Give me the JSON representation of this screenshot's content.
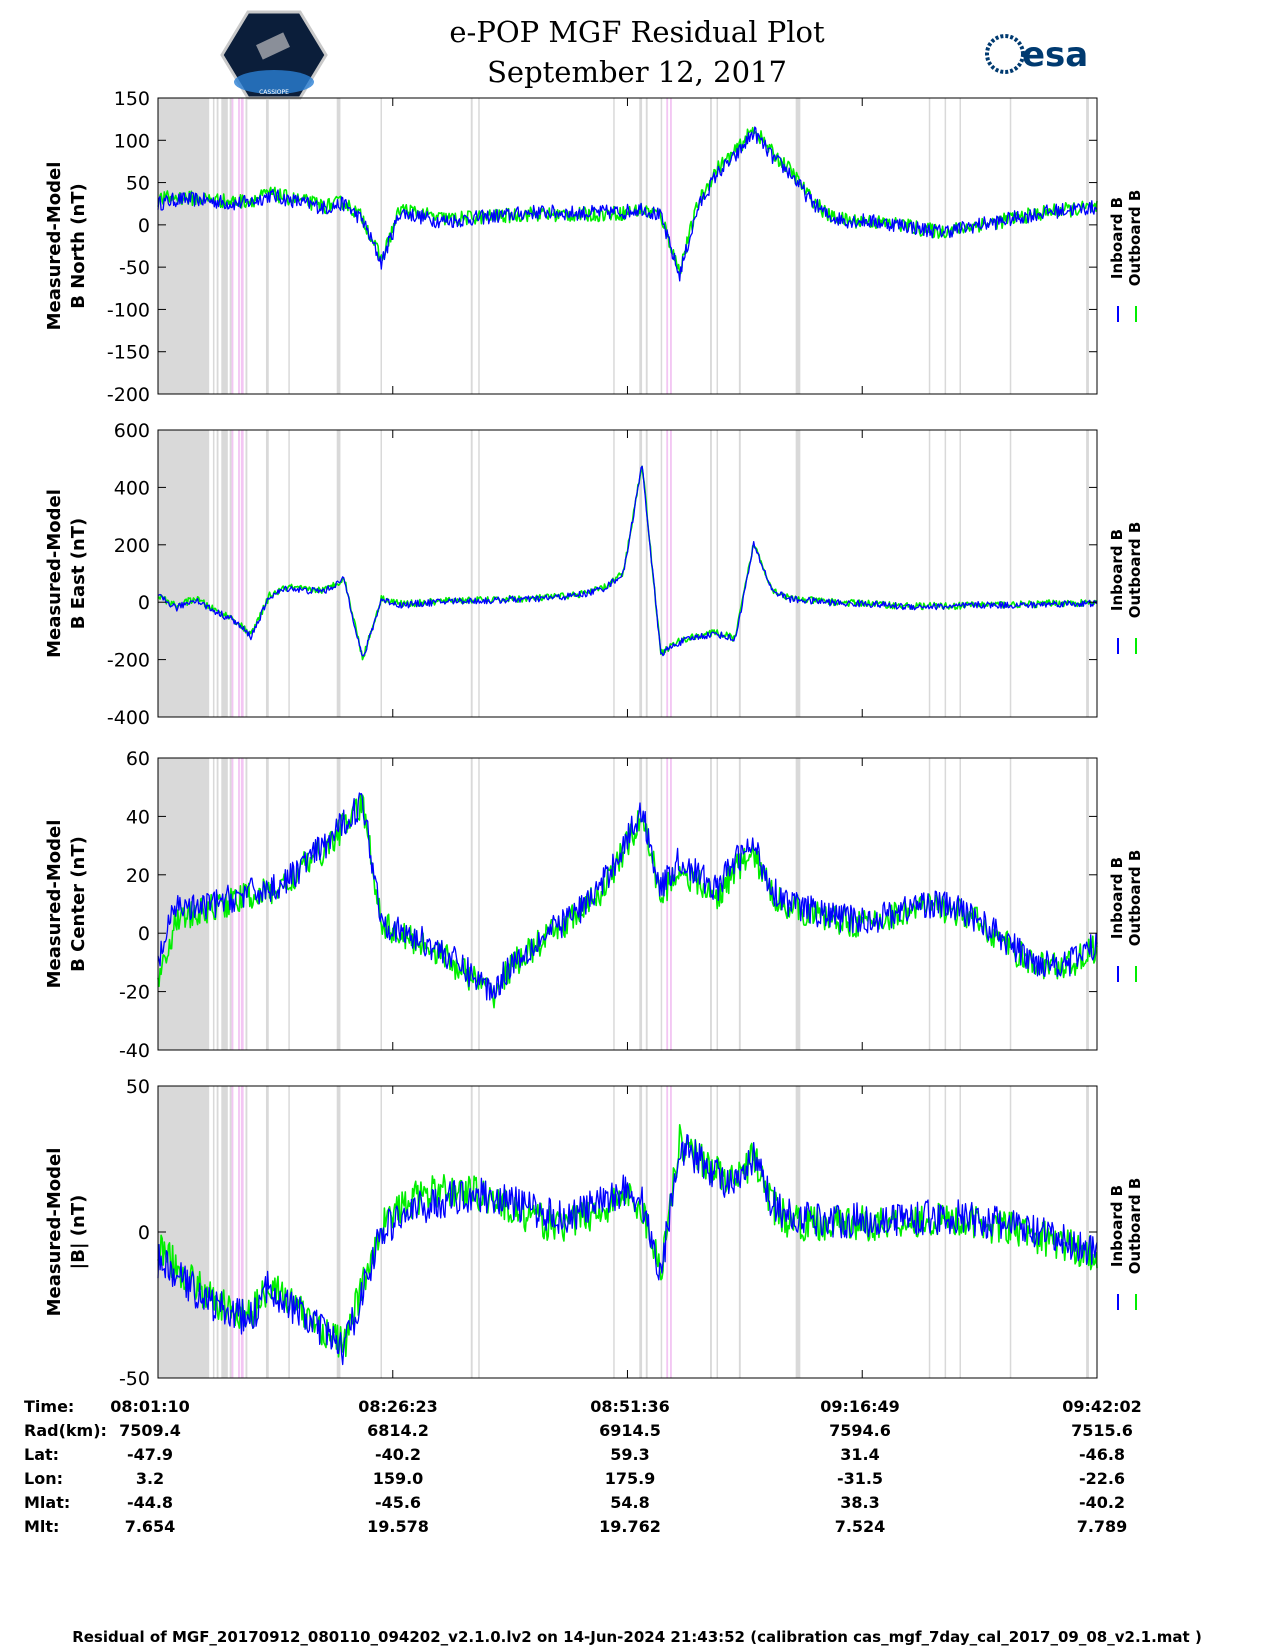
{
  "header": {
    "title_line1": "e-POP MGF Residual Plot",
    "title_line2": "September 12, 2017",
    "esa_logo_text": "esa",
    "cassiope_logo_text": "CASSIOPE"
  },
  "colors": {
    "inboard": "#0000ff",
    "outboard": "#00ee00",
    "gap_gray": "#d9d9d9",
    "gap_pink": "#f3c6f3"
  },
  "chart_data": [
    {
      "type": "line",
      "ylabel_line1": "Measured-Model",
      "ylabel_line2": "B North (nT)",
      "ylim": [
        -200,
        150
      ],
      "yticks": [
        "150",
        "100",
        "50",
        "0",
        "-50",
        "-100",
        "-150",
        "-200"
      ],
      "legend": [
        "Inboard B",
        "Outboard B"
      ],
      "x_minutes": [
        0,
        2,
        4,
        6,
        8,
        10,
        12,
        14,
        16,
        18,
        20,
        22,
        24,
        26,
        28,
        30,
        32,
        34,
        36,
        38,
        40,
        42,
        44,
        46,
        48,
        50,
        52,
        54,
        56,
        58,
        60,
        62,
        64,
        66,
        68,
        70,
        72,
        74,
        76,
        78,
        80,
        82,
        84,
        86,
        88,
        90,
        92,
        94,
        96,
        98,
        100
      ],
      "series": [
        {
          "name": "Inboard B",
          "values": [
            25,
            30,
            30,
            28,
            25,
            27,
            35,
            30,
            25,
            20,
            25,
            5,
            -45,
            15,
            10,
            5,
            5,
            8,
            10,
            12,
            15,
            15,
            14,
            14,
            15,
            15,
            20,
            10,
            -60,
            20,
            60,
            80,
            110,
            80,
            60,
            30,
            10,
            5,
            5,
            2,
            0,
            -5,
            -8,
            -5,
            0,
            3,
            8,
            12,
            16,
            18,
            20
          ]
        },
        {
          "name": "Outboard B",
          "values": [
            30,
            33,
            31,
            30,
            27,
            29,
            37,
            32,
            27,
            22,
            27,
            8,
            -42,
            19,
            14,
            8,
            7,
            9,
            10,
            11,
            13,
            12,
            12,
            12,
            13,
            14,
            18,
            12,
            -55,
            25,
            66,
            86,
            114,
            85,
            64,
            33,
            11,
            5,
            5,
            2,
            0,
            -5,
            -8,
            -5,
            0,
            3,
            8,
            12,
            16,
            18,
            20
          ]
        }
      ]
    },
    {
      "type": "line",
      "ylabel_line1": "Measured-Model",
      "ylabel_line2": "B East (nT)",
      "ylim": [
        -400,
        600
      ],
      "yticks": [
        "600",
        "400",
        "200",
        "0",
        "-200",
        "-400"
      ],
      "legend": [
        "Inboard B",
        "Outboard B"
      ],
      "x_minutes": [
        0,
        2,
        4,
        6,
        8,
        10,
        12,
        14,
        16,
        18,
        20,
        22,
        24,
        26,
        28,
        30,
        32,
        34,
        36,
        38,
        40,
        42,
        44,
        46,
        48,
        50,
        52,
        54,
        56,
        58,
        60,
        62,
        64,
        66,
        68,
        70,
        72,
        74,
        76,
        78,
        80,
        82,
        84,
        86,
        88,
        90,
        92,
        94,
        96,
        98,
        100
      ],
      "series": [
        {
          "name": "Inboard B",
          "values": [
            20,
            -20,
            10,
            -30,
            -60,
            -120,
            20,
            50,
            40,
            40,
            80,
            -200,
            10,
            -10,
            -5,
            0,
            5,
            5,
            5,
            10,
            10,
            15,
            20,
            30,
            50,
            100,
            480,
            -180,
            -140,
            -120,
            -110,
            -130,
            200,
            40,
            10,
            5,
            0,
            -5,
            -5,
            -10,
            -15,
            -15,
            -15,
            -15,
            -10,
            -10,
            -10,
            -10,
            -5,
            -5,
            -5
          ]
        },
        {
          "name": "Outboard B",
          "values": [
            22,
            -15,
            14,
            -26,
            -56,
            -115,
            24,
            53,
            43,
            43,
            83,
            -195,
            14,
            -5,
            -3,
            2,
            7,
            7,
            7,
            12,
            12,
            17,
            22,
            32,
            52,
            102,
            485,
            -175,
            -136,
            -116,
            -106,
            -126,
            205,
            44,
            12,
            7,
            2,
            -3,
            -3,
            -8,
            -13,
            -13,
            -13,
            -13,
            -8,
            -8,
            -8,
            -8,
            -3,
            -3,
            -3
          ]
        }
      ]
    },
    {
      "type": "line",
      "ylabel_line1": "Measured-Model",
      "ylabel_line2": "B Center (nT)",
      "ylim": [
        -40,
        60
      ],
      "yticks": [
        "60",
        "40",
        "20",
        "0",
        "-20",
        "-40"
      ],
      "legend": [
        "Inboard B",
        "Outboard B"
      ],
      "x_minutes": [
        0,
        2,
        4,
        6,
        8,
        10,
        12,
        14,
        16,
        18,
        20,
        22,
        24,
        26,
        28,
        30,
        32,
        34,
        36,
        38,
        40,
        42,
        44,
        46,
        48,
        50,
        52,
        54,
        56,
        58,
        60,
        62,
        64,
        66,
        68,
        70,
        72,
        74,
        76,
        78,
        80,
        82,
        84,
        86,
        88,
        90,
        92,
        94,
        96,
        98,
        100
      ],
      "series": [
        {
          "name": "Inboard B",
          "values": [
            -10,
            10,
            8,
            10,
            12,
            14,
            15,
            18,
            25,
            30,
            38,
            45,
            5,
            0,
            -2,
            -5,
            -10,
            -15,
            -20,
            -10,
            -5,
            0,
            5,
            10,
            18,
            30,
            42,
            15,
            25,
            20,
            15,
            25,
            30,
            15,
            10,
            8,
            6,
            5,
            4,
            6,
            8,
            10,
            10,
            8,
            5,
            0,
            -5,
            -10,
            -10,
            -10,
            -5
          ]
        },
        {
          "name": "Outboard B",
          "values": [
            -15,
            5,
            6,
            9,
            11,
            13,
            14,
            17,
            24,
            29,
            37,
            44,
            4,
            -1,
            -3,
            -6,
            -11,
            -16,
            -21,
            -11,
            -6,
            -1,
            4,
            9,
            16,
            28,
            40,
            13,
            22,
            17,
            12,
            22,
            27,
            13,
            9,
            7,
            5,
            4,
            3,
            5,
            7,
            9,
            9,
            7,
            4,
            -1,
            -6,
            -11,
            -11,
            -11,
            -6
          ]
        }
      ]
    },
    {
      "type": "line",
      "ylabel_line1": "Measured-Model",
      "ylabel_line2": "|B| (nT)",
      "ylim": [
        -50,
        50
      ],
      "yticks": [
        "50",
        "0",
        "-50"
      ],
      "legend": [
        "Inboard B",
        "Outboard B"
      ],
      "x_minutes": [
        0,
        2,
        4,
        6,
        8,
        10,
        12,
        14,
        16,
        18,
        20,
        22,
        24,
        26,
        28,
        30,
        32,
        34,
        36,
        38,
        40,
        42,
        44,
        46,
        48,
        50,
        52,
        54,
        56,
        58,
        60,
        62,
        64,
        66,
        68,
        70,
        72,
        74,
        76,
        78,
        80,
        82,
        84,
        86,
        88,
        90,
        92,
        94,
        96,
        98,
        100
      ],
      "series": [
        {
          "name": "Inboard B",
          "values": [
            -10,
            -15,
            -20,
            -25,
            -28,
            -30,
            -18,
            -25,
            -30,
            -35,
            -40,
            -20,
            0,
            5,
            8,
            10,
            12,
            13,
            12,
            10,
            8,
            6,
            5,
            8,
            10,
            15,
            10,
            -15,
            30,
            25,
            20,
            15,
            25,
            10,
            5,
            5,
            4,
            4,
            4,
            4,
            5,
            5,
            5,
            5,
            4,
            3,
            2,
            0,
            -2,
            -4,
            -6
          ]
        },
        {
          "name": "Outboard B",
          "values": [
            -5,
            -12,
            -18,
            -24,
            -27,
            -29,
            -17,
            -24,
            -29,
            -34,
            -39,
            -18,
            2,
            8,
            12,
            14,
            14,
            14,
            11,
            8,
            5,
            3,
            2,
            6,
            8,
            13,
            8,
            -13,
            31,
            26,
            21,
            16,
            26,
            9,
            3,
            3,
            3,
            3,
            3,
            3,
            4,
            4,
            4,
            4,
            3,
            2,
            1,
            -1,
            -3,
            -5,
            -7
          ]
        }
      ]
    }
  ],
  "xticks": [
    "08:01:10",
    "08:26:23",
    "08:51:36",
    "09:16:49",
    "09:42:02"
  ],
  "x_tick_minutes": [
    0,
    25.22,
    50.43,
    75.65,
    100.87
  ],
  "x_range_minutes": [
    0,
    100.87
  ],
  "gaps_gray_minutes": [
    [
      0,
      5.5
    ],
    [
      5.9,
      6.0
    ],
    [
      6.3,
      6.5
    ],
    [
      6.8,
      7.5
    ],
    [
      7.7,
      7.9
    ],
    [
      9.4,
      9.6
    ],
    [
      11.6,
      11.9
    ],
    [
      14.0,
      14.1
    ],
    [
      19.2,
      19.6
    ],
    [
      23.9,
      24.0
    ],
    [
      33.6,
      33.8
    ],
    [
      34.4,
      34.5
    ],
    [
      48.9,
      49.0
    ],
    [
      51.7,
      52.0
    ],
    [
      52.4,
      52.6
    ],
    [
      54.0,
      54.1
    ],
    [
      59.3,
      59.5
    ],
    [
      60.0,
      60.1
    ],
    [
      62.4,
      62.6
    ],
    [
      68.5,
      69.0
    ],
    [
      82.8,
      82.9
    ],
    [
      84.5,
      84.6
    ],
    [
      86.1,
      86.2
    ],
    [
      91.5,
      91.6
    ],
    [
      99.7,
      100.0
    ]
  ],
  "gaps_pink_minutes": [
    [
      7.9,
      8.1
    ],
    [
      8.6,
      8.8
    ],
    [
      8.9,
      9.2
    ],
    [
      54.6,
      54.8
    ],
    [
      55.0,
      55.2
    ]
  ],
  "table": {
    "row_labels": [
      "Time:",
      "Rad(km):",
      "Lat:",
      "Lon:",
      "Mlat:",
      "Mlt:"
    ],
    "columns": [
      [
        "08:01:10",
        "7509.4",
        "-47.9",
        "3.2",
        "-44.8",
        "7.654"
      ],
      [
        "08:26:23",
        "6814.2",
        "-40.2",
        "159.0",
        "-45.6",
        "19.578"
      ],
      [
        "08:51:36",
        "6914.5",
        "59.3",
        "175.9",
        "54.8",
        "19.762"
      ],
      [
        "09:16:49",
        "7594.6",
        "31.4",
        "-31.5",
        "38.3",
        "7.524"
      ],
      [
        "09:42:02",
        "7515.6",
        "-46.8",
        "-22.6",
        "-40.2",
        "7.789"
      ]
    ]
  },
  "footer": "Residual of MGF_20170912_080110_094202_v2.1.0.lv2 on 14-Jun-2024 21:43:52 (calibration cas_mgf_7day_cal_2017_09_08_v2.1.mat )"
}
